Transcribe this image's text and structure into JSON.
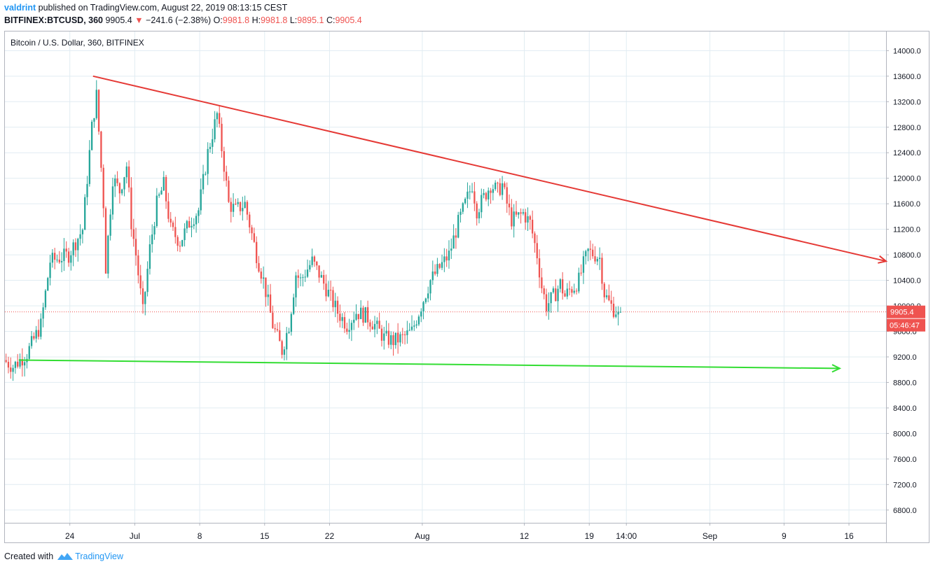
{
  "header": {
    "user": "valdrint",
    "published_text": "published on TradingView.com, August 22, 2019 08:13:15 CEST",
    "symbol": "BITFINEX:BTCUSD, 360",
    "last": "9905.4",
    "change": "−241.6 (−2.38%)",
    "o_label": "O:",
    "o_value": "9981.8",
    "h_label": "H:",
    "h_value": "9981.8",
    "l_label": "L:",
    "l_value": "9895.1",
    "c_label": "C:",
    "c_value": "9905.4"
  },
  "footer": {
    "created_with": "Created with",
    "brand": "TradingView"
  },
  "colors": {
    "up": "#26a69a",
    "down": "#ef5350",
    "resistance": "#e53935",
    "support": "#33dd33",
    "grid": "#e1ecf2",
    "axis_text": "#131722",
    "price_tag": "#ef5350"
  },
  "chart_data": {
    "type": "candlestick",
    "title": "Bitcoin / U.S. Dollar, 360, BITFINEX",
    "xlabel": "",
    "ylabel": "",
    "ylim": [
      6600,
      14300
    ],
    "y_ticks": [
      "14000.0",
      "13600.0",
      "13200.0",
      "12800.0",
      "12400.0",
      "12000.0",
      "11600.0",
      "11200.0",
      "10800.0",
      "10400.0",
      "10000.0",
      "9600.0",
      "9200.0",
      "8800.0",
      "8400.0",
      "8000.0",
      "7600.0",
      "7200.0",
      "6800.0"
    ],
    "x_tick_labels": [
      "24",
      "Jul",
      "8",
      "15",
      "22",
      "Aug",
      "12",
      "19",
      "14:00",
      "Sep",
      "9",
      "16"
    ],
    "x_tick_dates": [
      "2019-06-24",
      "2019-07-01",
      "2019-07-08",
      "2019-07-15",
      "2019-07-22",
      "2019-08-01",
      "2019-08-12",
      "2019-08-19",
      "2019-08-23",
      "2019-09-01",
      "2019-09-09",
      "2019-09-16"
    ],
    "x_range": [
      "2019-06-17",
      "2019-09-20"
    ],
    "last_price": "9905.4",
    "countdown": "05:46:47",
    "price_path": [
      [
        "2019-06-17T00:00",
        9150
      ],
      [
        "2019-06-18T00:00",
        9050
      ],
      [
        "2019-06-19T12:00",
        9250
      ],
      [
        "2019-06-21T00:00",
        9700
      ],
      [
        "2019-06-22T00:00",
        10700
      ],
      [
        "2019-06-23T00:00",
        10750
      ],
      [
        "2019-06-24T00:00",
        10800
      ],
      [
        "2019-06-25T12:00",
        11200
      ],
      [
        "2019-06-26T12:00",
        12800
      ],
      [
        "2019-06-27T00:00",
        13300
      ],
      [
        "2019-06-27T18:00",
        11600
      ],
      [
        "2019-06-28T00:00",
        10600
      ],
      [
        "2019-06-28T18:00",
        12000
      ],
      [
        "2019-06-29T12:00",
        11800
      ],
      [
        "2019-06-30T06:00",
        12200
      ],
      [
        "2019-06-30T18:00",
        11300
      ],
      [
        "2019-07-01T06:00",
        10800
      ],
      [
        "2019-07-02T00:00",
        9900
      ],
      [
        "2019-07-02T18:00",
        10900
      ],
      [
        "2019-07-03T12:00",
        11600
      ],
      [
        "2019-07-04T06:00",
        11900
      ],
      [
        "2019-07-05T00:00",
        11200
      ],
      [
        "2019-07-06T00:00",
        11000
      ],
      [
        "2019-07-07T00:00",
        11300
      ],
      [
        "2019-07-08T00:00",
        11500
      ],
      [
        "2019-07-09T00:00",
        12400
      ],
      [
        "2019-07-10T00:00",
        13000
      ],
      [
        "2019-07-10T18:00",
        12200
      ],
      [
        "2019-07-11T06:00",
        11600
      ],
      [
        "2019-07-12T00:00",
        11500
      ],
      [
        "2019-07-13T00:00",
        11600
      ],
      [
        "2019-07-14T06:00",
        10800
      ],
      [
        "2019-07-15T00:00",
        10400
      ],
      [
        "2019-07-16T00:00",
        9700
      ],
      [
        "2019-07-17T00:00",
        9300
      ],
      [
        "2019-07-17T18:00",
        9700
      ],
      [
        "2019-07-18T12:00",
        10500
      ],
      [
        "2019-07-19T00:00",
        10400
      ],
      [
        "2019-07-20T06:00",
        10700
      ],
      [
        "2019-07-21T00:00",
        10500
      ],
      [
        "2019-07-22T00:00",
        10200
      ],
      [
        "2019-07-23T00:00",
        9900
      ],
      [
        "2019-07-24T00:00",
        9700
      ],
      [
        "2019-07-25T00:00",
        9900
      ],
      [
        "2019-07-26T00:00",
        9850
      ],
      [
        "2019-07-27T00:00",
        9700
      ],
      [
        "2019-07-28T00:00",
        9500
      ],
      [
        "2019-07-29T00:00",
        9450
      ],
      [
        "2019-07-30T00:00",
        9500
      ],
      [
        "2019-07-31T00:00",
        9600
      ],
      [
        "2019-08-01T00:00",
        10000
      ],
      [
        "2019-08-02T00:00",
        10400
      ],
      [
        "2019-08-03T00:00",
        10600
      ],
      [
        "2019-08-04T00:00",
        10800
      ],
      [
        "2019-08-05T00:00",
        11300
      ],
      [
        "2019-08-06T00:00",
        11700
      ],
      [
        "2019-08-06T12:00",
        11900
      ],
      [
        "2019-08-07T00:00",
        11500
      ],
      [
        "2019-08-07T18:00",
        11700
      ],
      [
        "2019-08-08T12:00",
        11900
      ],
      [
        "2019-08-09T06:00",
        11800
      ],
      [
        "2019-08-09T18:00",
        11900
      ],
      [
        "2019-08-10T06:00",
        11600
      ],
      [
        "2019-08-10T18:00",
        11350
      ],
      [
        "2019-08-11T12:00",
        11400
      ],
      [
        "2019-08-12T00:00",
        11450
      ],
      [
        "2019-08-12T18:00",
        11300
      ],
      [
        "2019-08-13T12:00",
        10800
      ],
      [
        "2019-08-14T00:00",
        10300
      ],
      [
        "2019-08-14T12:00",
        10000
      ],
      [
        "2019-08-15T00:00",
        10100
      ],
      [
        "2019-08-15T12:00",
        10200
      ],
      [
        "2019-08-16T00:00",
        10350
      ],
      [
        "2019-08-16T12:00",
        10150
      ],
      [
        "2019-08-17T00:00",
        10250
      ],
      [
        "2019-08-17T12:00",
        10300
      ],
      [
        "2019-08-18T00:00",
        10400
      ],
      [
        "2019-08-18T12:00",
        10650
      ],
      [
        "2019-08-19T00:00",
        10850
      ],
      [
        "2019-08-19T18:00",
        10800
      ],
      [
        "2019-08-20T06:00",
        10750
      ],
      [
        "2019-08-20T18:00",
        10200
      ],
      [
        "2019-08-21T06:00",
        10050
      ],
      [
        "2019-08-21T18:00",
        9950
      ],
      [
        "2019-08-22T06:00",
        9905
      ]
    ],
    "annotations": [
      {
        "name": "resistance-trendline",
        "color": "#e53935",
        "from": [
          "2019-06-26T12:00",
          13600
        ],
        "to": [
          "2019-09-20T00:00",
          10700
        ]
      },
      {
        "name": "support-trendline",
        "color": "#33dd33",
        "from": [
          "2019-06-18T12:00",
          9150
        ],
        "to": [
          "2019-09-15T00:00",
          9020
        ]
      }
    ]
  }
}
